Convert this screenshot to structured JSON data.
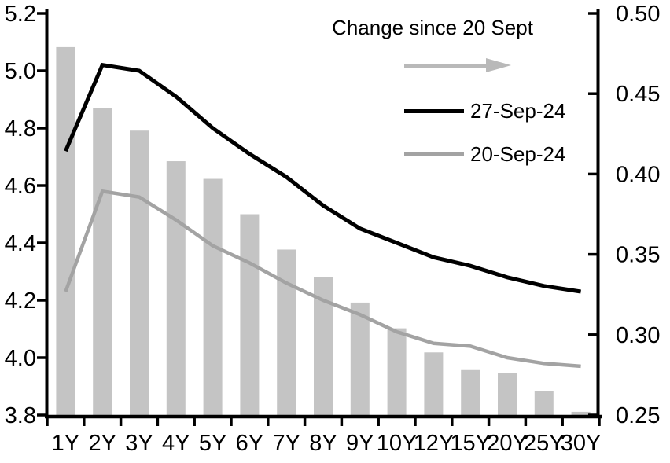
{
  "chart_data": {
    "type": "combo",
    "title": "",
    "categories": [
      "1Y",
      "2Y",
      "3Y",
      "4Y",
      "5Y",
      "6Y",
      "7Y",
      "8Y",
      "9Y",
      "10Y",
      "12Y",
      "15Y",
      "20Y",
      "25Y",
      "30Y"
    ],
    "series": [
      {
        "name": "Change since 20 Sept",
        "type": "bar",
        "axis": "right",
        "color": "#c4c4c4",
        "values": [
          0.479,
          0.441,
          0.427,
          0.408,
          0.397,
          0.375,
          0.353,
          0.336,
          0.32,
          0.304,
          0.289,
          0.278,
          0.276,
          0.265,
          0.252
        ]
      },
      {
        "name": "27-Sep-24",
        "type": "line",
        "axis": "left",
        "color": "#000000",
        "values": [
          4.72,
          5.02,
          5.0,
          4.91,
          4.8,
          4.71,
          4.63,
          4.53,
          4.45,
          4.4,
          4.35,
          4.32,
          4.28,
          4.25,
          4.23
        ]
      },
      {
        "name": "20-Sep-24",
        "type": "line",
        "axis": "left",
        "color": "#a3a3a3",
        "values": [
          4.23,
          4.58,
          4.56,
          4.48,
          4.39,
          4.33,
          4.26,
          4.2,
          4.15,
          4.09,
          4.05,
          4.04,
          4.0,
          3.98,
          3.97
        ]
      }
    ],
    "left_axis": {
      "min": 3.8,
      "max": 5.2,
      "tick_step": 0.2,
      "tick_labels": [
        "5.2",
        "5.0",
        "4.8",
        "4.6",
        "4.4",
        "4.2",
        "4.0",
        "3.8"
      ]
    },
    "right_axis": {
      "min": 0.25,
      "max": 0.5,
      "tick_step": 0.05,
      "tick_labels": [
        "0.50",
        "0.45",
        "0.40",
        "0.35",
        "0.30",
        "0.25"
      ]
    },
    "legend": {
      "position": "top-center",
      "arrow_icon": "right-arrow",
      "arrow_color": "#b9b9b9",
      "entries": [
        "27-Sep-24",
        "20-Sep-24"
      ]
    },
    "grid": false,
    "axis_color": "#000000"
  }
}
